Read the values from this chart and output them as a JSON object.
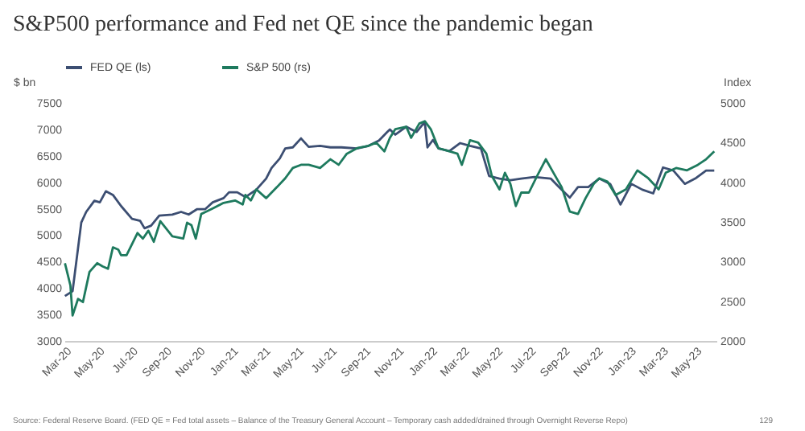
{
  "chart_data": {
    "type": "line",
    "title": "S&P500 performance and Fed net QE since the pandemic began",
    "ylabel": "$ bn",
    "y2label": "Index",
    "xlim": [
      "2020-03-01",
      "2023-06-10"
    ],
    "xticks": [
      {
        "value": "2020-03-01",
        "label": "Mar-20"
      },
      {
        "value": "2020-05-01",
        "label": "May-20"
      },
      {
        "value": "2020-07-01",
        "label": "Jul-20"
      },
      {
        "value": "2020-09-01",
        "label": "Sep-20"
      },
      {
        "value": "2020-11-01",
        "label": "Nov-20"
      },
      {
        "value": "2021-01-01",
        "label": "Jan-21"
      },
      {
        "value": "2021-03-01",
        "label": "Mar-21"
      },
      {
        "value": "2021-05-01",
        "label": "May-21"
      },
      {
        "value": "2021-07-01",
        "label": "Jul-21"
      },
      {
        "value": "2021-09-01",
        "label": "Sep-21"
      },
      {
        "value": "2021-11-01",
        "label": "Nov-21"
      },
      {
        "value": "2022-01-01",
        "label": "Jan-22"
      },
      {
        "value": "2022-03-01",
        "label": "Mar-22"
      },
      {
        "value": "2022-05-01",
        "label": "May-22"
      },
      {
        "value": "2022-07-01",
        "label": "Jul-22"
      },
      {
        "value": "2022-09-01",
        "label": "Sep-22"
      },
      {
        "value": "2022-11-01",
        "label": "Nov-22"
      },
      {
        "value": "2023-01-01",
        "label": "Jan-23"
      },
      {
        "value": "2023-03-01",
        "label": "Mar-23"
      },
      {
        "value": "2023-05-01",
        "label": "May-23"
      }
    ],
    "ylim": [
      3000,
      7500
    ],
    "yticks": [
      3000,
      3500,
      4000,
      4500,
      5000,
      5500,
      6000,
      6500,
      7000,
      7500
    ],
    "y2lim": [
      2000,
      5000
    ],
    "y2ticks": [
      2000,
      2500,
      3000,
      3500,
      4000,
      4500,
      5000
    ],
    "grid": false,
    "legend": "top",
    "series": [
      {
        "name": "FED QE (ls)",
        "color": "#3c4e72",
        "axis": "y",
        "x": [
          "2020-03-02",
          "2020-03-16",
          "2020-04-01",
          "2020-04-10",
          "2020-04-25",
          "2020-05-05",
          "2020-05-16",
          "2020-05-29",
          "2020-06-13",
          "2020-07-03",
          "2020-07-18",
          "2020-07-26",
          "2020-08-07",
          "2020-08-22",
          "2020-09-15",
          "2020-10-01",
          "2020-10-15",
          "2020-10-30",
          "2020-11-14",
          "2020-11-28",
          "2020-12-18",
          "2020-12-28",
          "2021-01-12",
          "2021-01-27",
          "2021-02-16",
          "2021-03-06",
          "2021-03-16",
          "2021-03-31",
          "2021-04-10",
          "2021-04-24",
          "2021-05-09",
          "2021-05-23",
          "2021-06-13",
          "2021-07-02",
          "2021-07-22",
          "2021-08-20",
          "2021-09-10",
          "2021-09-29",
          "2021-10-14",
          "2021-10-19",
          "2021-10-29",
          "2021-11-18",
          "2021-12-07",
          "2021-12-22",
          "2021-12-27",
          "2022-01-06",
          "2022-01-16",
          "2022-02-05",
          "2022-02-25",
          "2022-03-15",
          "2022-04-04",
          "2022-04-19",
          "2022-05-08",
          "2022-05-28",
          "2022-06-17",
          "2022-07-11",
          "2022-08-10",
          "2022-08-25",
          "2022-09-14",
          "2022-09-29",
          "2022-10-18",
          "2022-11-07",
          "2022-11-27",
          "2022-12-16",
          "2023-01-05",
          "2023-01-25",
          "2023-02-14",
          "2023-03-04",
          "2023-03-23",
          "2023-04-13",
          "2023-05-02",
          "2023-05-22",
          "2023-06-06"
        ],
        "values": [
          3850,
          3940,
          5240,
          5440,
          5650,
          5620,
          5830,
          5760,
          5550,
          5310,
          5270,
          5130,
          5180,
          5370,
          5390,
          5440,
          5390,
          5490,
          5490,
          5620,
          5700,
          5810,
          5810,
          5720,
          5860,
          6070,
          6270,
          6450,
          6640,
          6660,
          6830,
          6670,
          6690,
          6660,
          6660,
          6640,
          6690,
          6790,
          6950,
          7000,
          6900,
          7050,
          6950,
          7140,
          6660,
          6800,
          6640,
          6590,
          6740,
          6690,
          6640,
          6120,
          6070,
          6040,
          6070,
          6100,
          6070,
          5910,
          5710,
          5910,
          5910,
          6070,
          5970,
          5580,
          5970,
          5860,
          5790,
          6280,
          6220,
          5970,
          6070,
          6220,
          6220
        ]
      },
      {
        "name": "S&P 500 (rs)",
        "color": "#1e7a5e",
        "axis": "y2",
        "x": [
          "2020-03-02",
          "2020-03-12",
          "2020-03-16",
          "2020-03-26",
          "2020-04-04",
          "2020-04-16",
          "2020-04-30",
          "2020-05-10",
          "2020-05-20",
          "2020-05-29",
          "2020-06-08",
          "2020-06-13",
          "2020-06-23",
          "2020-07-03",
          "2020-07-13",
          "2020-07-23",
          "2020-08-02",
          "2020-08-12",
          "2020-08-24",
          "2020-09-15",
          "2020-10-05",
          "2020-10-12",
          "2020-10-20",
          "2020-10-28",
          "2020-11-07",
          "2020-11-28",
          "2020-12-18",
          "2021-01-08",
          "2021-01-22",
          "2021-01-27",
          "2021-02-06",
          "2021-02-16",
          "2021-03-06",
          "2021-03-26",
          "2021-04-10",
          "2021-04-24",
          "2021-05-09",
          "2021-05-23",
          "2021-06-13",
          "2021-07-02",
          "2021-07-17",
          "2021-08-01",
          "2021-08-20",
          "2021-09-10",
          "2021-09-24",
          "2021-10-09",
          "2021-10-19",
          "2021-10-29",
          "2021-11-18",
          "2021-11-27",
          "2021-12-12",
          "2021-12-22",
          "2022-01-02",
          "2022-01-16",
          "2022-02-05",
          "2022-02-20",
          "2022-02-28",
          "2022-03-15",
          "2022-03-30",
          "2022-04-14",
          "2022-04-24",
          "2022-05-08",
          "2022-05-18",
          "2022-05-28",
          "2022-06-07",
          "2022-06-17",
          "2022-07-01",
          "2022-07-16",
          "2022-08-01",
          "2022-08-15",
          "2022-08-30",
          "2022-09-14",
          "2022-09-29",
          "2022-10-13",
          "2022-10-28",
          "2022-11-07",
          "2022-11-22",
          "2022-12-07",
          "2022-12-26",
          "2023-01-16",
          "2023-02-05",
          "2023-02-24",
          "2023-03-09",
          "2023-03-28",
          "2023-04-17",
          "2023-05-07",
          "2023-05-22",
          "2023-06-06"
        ],
        "values": [
          2980,
          2700,
          2320,
          2530,
          2490,
          2870,
          2980,
          2940,
          2910,
          3180,
          3150,
          3080,
          3080,
          3220,
          3360,
          3290,
          3390,
          3250,
          3510,
          3320,
          3290,
          3490,
          3460,
          3290,
          3600,
          3670,
          3740,
          3770,
          3720,
          3840,
          3770,
          3910,
          3800,
          3940,
          4050,
          4180,
          4220,
          4220,
          4180,
          4290,
          4220,
          4360,
          4430,
          4460,
          4500,
          4390,
          4560,
          4670,
          4700,
          4560,
          4740,
          4770,
          4670,
          4430,
          4390,
          4360,
          4220,
          4530,
          4500,
          4360,
          4080,
          3910,
          4120,
          3980,
          3700,
          3870,
          3870,
          4080,
          4290,
          4120,
          3940,
          3630,
          3600,
          3800,
          3980,
          4050,
          4010,
          3840,
          3910,
          4150,
          4050,
          3910,
          4120,
          4180,
          4150,
          4220,
          4290,
          4390
        ]
      }
    ],
    "annotations": [
      "Source: Federal Reserve Board. (FED QE = Fed total assets – Balance of the Treasury General Account – Temporary cash added/drained through Overnight Reverse Repo)",
      "129"
    ]
  }
}
